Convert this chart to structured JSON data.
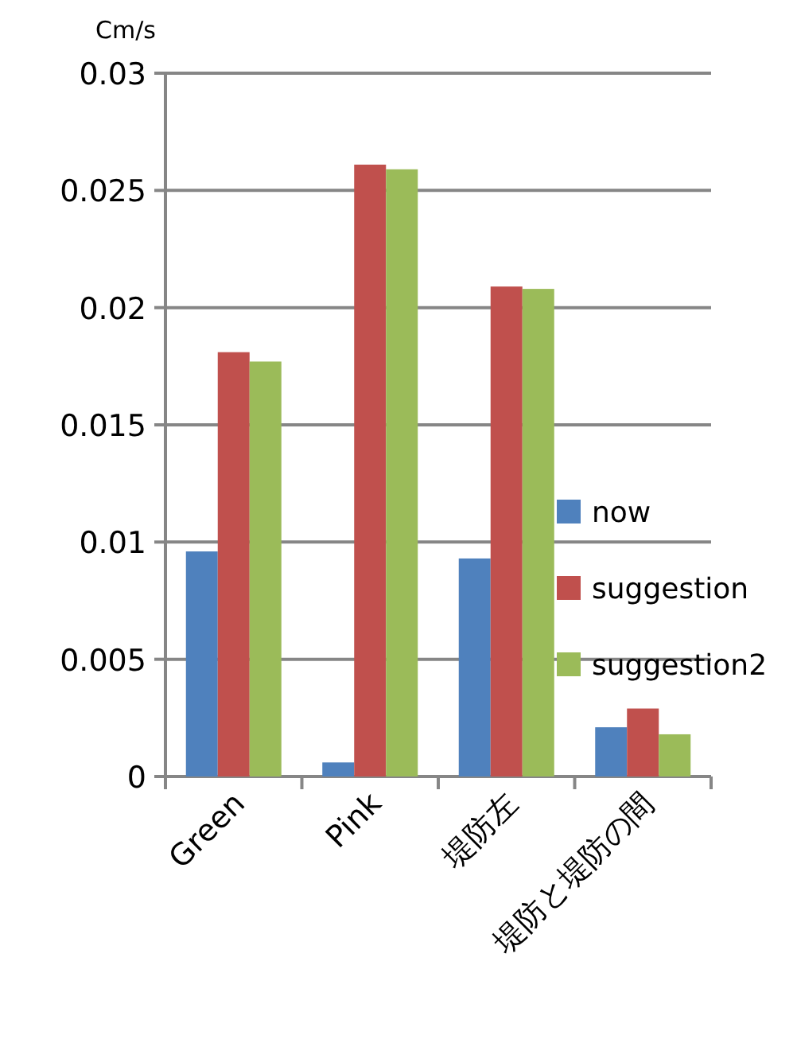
{
  "chart_data": {
    "type": "bar",
    "ylabel": "Cm/s",
    "categories": [
      "Green",
      "Pink",
      "堤防左",
      "堤防と堤防の間"
    ],
    "series": [
      {
        "name": "now",
        "color": "#4f81bd",
        "values": [
          0.0096,
          0.0006,
          0.0093,
          0.0021
        ]
      },
      {
        "name": "suggestion",
        "color": "#c0504d",
        "values": [
          0.0181,
          0.0261,
          0.0209,
          0.0029
        ]
      },
      {
        "name": "suggestion2",
        "color": "#9bbb59",
        "values": [
          0.0177,
          0.0259,
          0.0208,
          0.0018
        ]
      }
    ],
    "ylim": [
      0,
      0.03
    ],
    "yticks": [
      0,
      0.005,
      0.01,
      0.015,
      0.02,
      0.025,
      0.03
    ],
    "grid": "y",
    "legend": "right"
  }
}
